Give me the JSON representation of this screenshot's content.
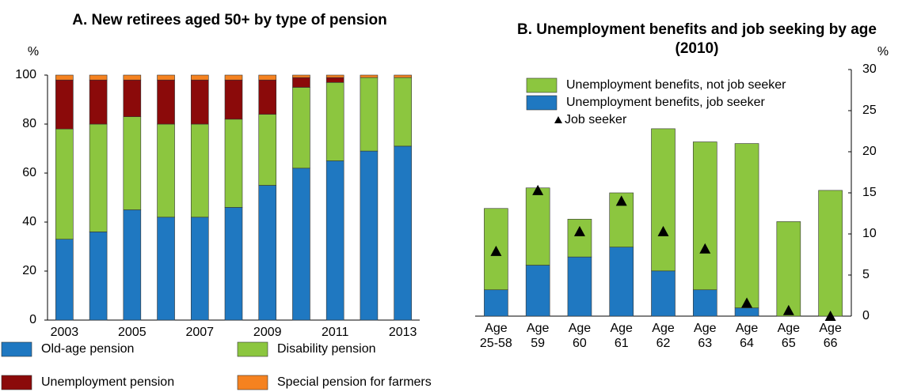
{
  "chart_data": [
    {
      "type": "bar",
      "stacked": true,
      "title": "A. New retirees aged 50+ by type of pension",
      "y_label": "%",
      "categories": [
        "2003",
        null,
        "2005",
        null,
        "2007",
        null,
        "2009",
        null,
        "2011",
        null,
        "2013"
      ],
      "ylim": [
        0,
        100
      ],
      "yticks": [
        0,
        20,
        40,
        60,
        80,
        100
      ],
      "grid": false,
      "series": [
        {
          "name": "Old-age pension",
          "color": "#1f78c1",
          "values": [
            33,
            36,
            45,
            42,
            42,
            46,
            55,
            62,
            65,
            69,
            71
          ]
        },
        {
          "name": "Disability pension",
          "color": "#8cc63f",
          "values": [
            45,
            44,
            38,
            38,
            38,
            36,
            29,
            33,
            32,
            30,
            28
          ]
        },
        {
          "name": "Unemployment pension",
          "color": "#8b0a0a",
          "values": [
            20,
            18,
            15,
            18,
            18,
            16,
            14,
            4,
            2,
            0,
            0
          ]
        },
        {
          "name": "Special pension for farmers",
          "color": "#f58220",
          "values": [
            2,
            2,
            2,
            2,
            2,
            2,
            2,
            1,
            1,
            1,
            1
          ]
        }
      ]
    },
    {
      "type": "bar",
      "stacked": true,
      "title": "B. Unemployment benefits and job seeking by age (2010)",
      "y_label": "%",
      "categories": [
        "Age 25-58",
        "Age 59",
        "Age 60",
        "Age 61",
        "Age 62",
        "Age 63",
        "Age 64",
        "Age 65",
        "Age 66"
      ],
      "y2lim": [
        0,
        30
      ],
      "y2ticks": [
        0,
        5,
        10,
        15,
        20,
        25,
        30
      ],
      "grid": false,
      "series": [
        {
          "name": "Unemployment benefits, job seeker",
          "color": "#1f78c1",
          "axis": "y2",
          "values": [
            3.2,
            6.2,
            7.2,
            8.4,
            5.5,
            3.2,
            1.0,
            0,
            0
          ]
        },
        {
          "name": "Unemployment benefits, not job seeker",
          "color": "#8cc63f",
          "axis": "y2",
          "values": [
            9.9,
            9.4,
            4.6,
            6.6,
            17.3,
            18.0,
            20.0,
            11.5,
            15.3
          ]
        },
        {
          "name": "Job seeker",
          "color": "#000000",
          "axis": "y2",
          "marker": "triangle",
          "values": [
            7.9,
            15.3,
            10.3,
            14.0,
            10.3,
            8.2,
            1.6,
            0.7,
            0
          ]
        }
      ]
    }
  ]
}
